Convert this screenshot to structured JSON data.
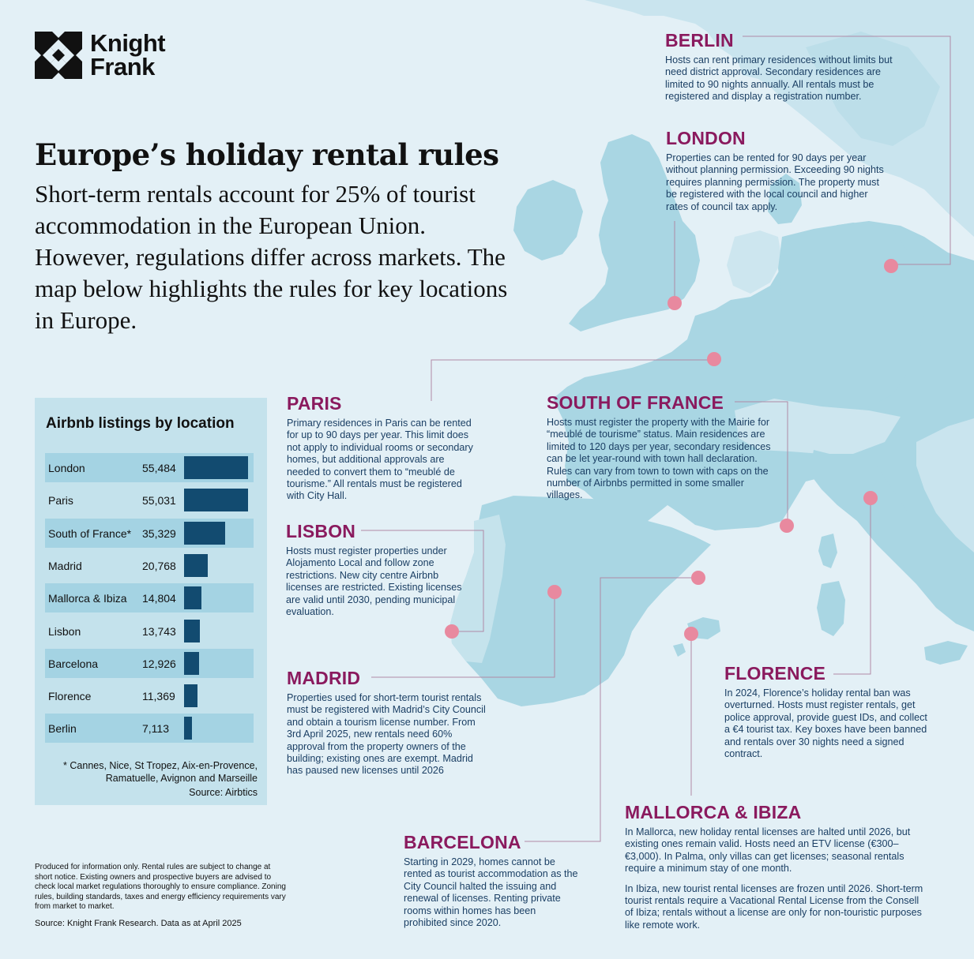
{
  "brand": {
    "line1": "Knight",
    "line2": "Frank"
  },
  "title": "Europe’s holiday rental rules",
  "subtitle": "Short-term rentals account for 25% of tourist accommodation in the European Union. However, regulations differ across markets. The map below highlights the rules for key locations in Europe.",
  "colors": {
    "land": "#a9d6e3",
    "sea": "#e3f0f6",
    "accent": "#8a1a5e",
    "marker": "#e8899f",
    "bar": "#124b70"
  },
  "chart_data": {
    "type": "bar",
    "orientation": "horizontal",
    "title": "Airbnb listings by location",
    "categories": [
      "London",
      "Paris",
      "South of France*",
      "Madrid",
      "Mallorca & Ibiza",
      "Lisbon",
      "Barcelona",
      "Florence",
      "Berlin"
    ],
    "value_labels": [
      "55,484",
      "55,031",
      "35,329",
      "20,768",
      "14,804",
      "13,743",
      "12,926",
      "11,369",
      "7,113"
    ],
    "values": [
      55484,
      55031,
      35329,
      20768,
      14804,
      13743,
      12926,
      11369,
      7113
    ],
    "xlim": [
      0,
      56000
    ],
    "footnote": "* Cannes, Nice, St Tropez, Aix-en-Provence, Ramatuelle, Avignon and Marseille",
    "source": "Source: Airbtics"
  },
  "cities": {
    "berlin": {
      "name": "BERLIN",
      "paragraphs": [
        "Hosts can rent primary residences without limits but need district approval. Secondary residences are limited to 90 nights annually. All rentals must be registered and display a registration number."
      ]
    },
    "london": {
      "name": "LONDON",
      "paragraphs": [
        "Properties can be rented for 90 days per year without planning permission. Exceeding 90 nights requires planning permission. The property must be registered with the local council and higher rates of council tax apply."
      ]
    },
    "paris": {
      "name": "PARIS",
      "paragraphs": [
        "Primary residences in Paris can be rented for up to 90 days per year. This limit does not apply to individual rooms or secondary homes, but additional approvals are needed to convert them to “meublé de tourisme.” All rentals must be registered with City Hall."
      ]
    },
    "south_of_france": {
      "name": "SOUTH OF FRANCE",
      "paragraphs": [
        "Hosts must register the property with the Mairie for “meublé de tourisme” status. Main residences are limited to 120 days per year, secondary residences can be let year-round with town hall declaration. Rules can vary from town to town with caps on the number of Airbnbs permitted in some smaller villages."
      ]
    },
    "lisbon": {
      "name": "LISBON",
      "paragraphs": [
        "Hosts must register properties under Alojamento Local and follow zone restrictions. New city centre Airbnb licenses are restricted. Existing licenses are valid until 2030, pending municipal evaluation."
      ]
    },
    "madrid": {
      "name": "MADRID",
      "paragraphs": [
        "Properties used for short-term tourist rentals must be registered with Madrid’s City Council and obtain a tourism license number. From 3rd April 2025, new rentals need 60% approval from the property owners of the building; existing ones are exempt. Madrid has paused new licenses until 2026"
      ]
    },
    "florence": {
      "name": "FLORENCE",
      "paragraphs": [
        "In 2024, Florence’s holiday rental ban was overturned. Hosts must register rentals, get police approval, provide guest IDs, and collect a €4 tourist tax. Key boxes have been banned and rentals over 30 nights need a signed contract."
      ]
    },
    "mallorca_ibiza": {
      "name": "MALLORCA & IBIZA",
      "paragraphs": [
        "In Mallorca, new holiday rental licenses are halted until 2026, but existing ones remain valid. Hosts need an ETV license (€300–€3,000). In Palma, only villas can get licenses; seasonal rentals require a minimum stay of one month.",
        "In Ibiza, new tourist rental licenses are frozen until 2026. Short-term tourist rentals require a Vacational Rental License from the Consell of Ibiza; rentals without a license are only for non-touristic purposes like remote work."
      ]
    },
    "barcelona": {
      "name": "BARCELONA",
      "paragraphs": [
        "Starting in 2029, homes cannot be rented as tourist accommodation as the City Council halted the issuing and renewal of licenses. Renting private rooms within homes has been prohibited since 2020."
      ]
    }
  },
  "disclaimer": "Produced for information only. Rental rules are subject to change at short notice. Existing owners and prospective buyers are advised to check local market regulations thoroughly to ensure compliance. Zoning rules, building standards, taxes and energy efficiency requirements vary from market to market.",
  "source": "Source: Knight Frank Research. Data as at April 2025"
}
